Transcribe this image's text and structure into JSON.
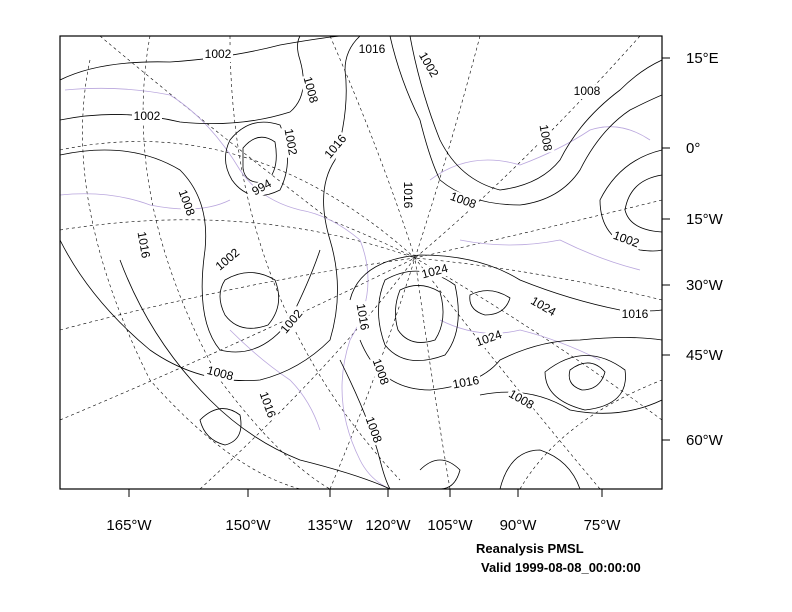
{
  "map": {
    "title": "Reanalysis PMSL",
    "subtitle": "Valid 1999-08-08_00:00:00",
    "x_labels": [
      "165°W",
      "150°W",
      "135°W",
      "120°W",
      "105°W",
      "90°W",
      "75°W"
    ],
    "y_labels": [
      "15°E",
      "0°",
      "15°W",
      "30°W",
      "45°W",
      "60°W"
    ],
    "contour_labels": [
      1002,
      1016,
      1002,
      1008,
      1008,
      1002,
      1002,
      1016,
      1008,
      994,
      1008,
      1016,
      1008,
      1016,
      1002,
      1002,
      1024,
      1024,
      1016,
      1016,
      1002,
      1024,
      1008,
      1016,
      1008,
      1008,
      1016,
      1008
    ]
  }
}
